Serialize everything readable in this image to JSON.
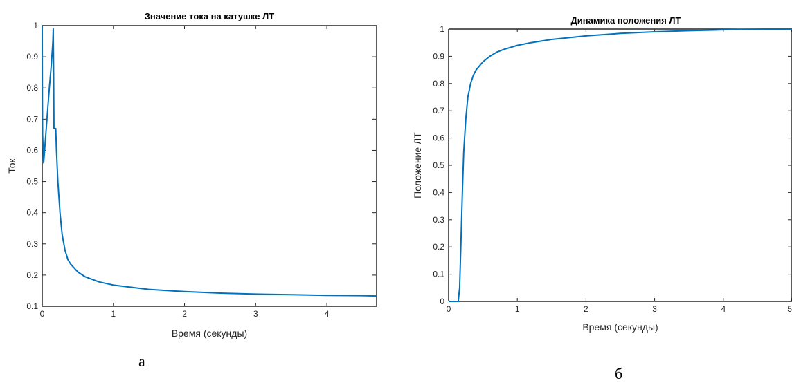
{
  "chart_data": [
    {
      "type": "line",
      "title": "Значение тока на катушке ЛТ",
      "xlabel": "Время (секунды)",
      "ylabel": "Ток",
      "xlim": [
        0,
        4.7
      ],
      "ylim": [
        0.1,
        1.0
      ],
      "xticks": [
        "0",
        "1",
        "2",
        "3",
        "4"
      ],
      "yticks": [
        "0.1",
        "0.2",
        "0.3",
        "0.4",
        "0.5",
        "0.6",
        "0.7",
        "0.8",
        "0.9",
        "1"
      ],
      "grid": false,
      "series": [
        {
          "color": "#0072BD",
          "x": [
            0,
            0.002,
            0.005,
            0.02,
            0.04,
            0.07,
            0.1,
            0.13,
            0.15,
            0.155,
            0.16,
            0.165,
            0.17,
            0.19,
            0.2,
            0.22,
            0.25,
            0.28,
            0.32,
            0.36,
            0.4,
            0.5,
            0.6,
            0.8,
            1.0,
            1.5,
            2.0,
            2.5,
            3.0,
            3.5,
            4.0,
            4.5,
            4.7
          ],
          "y": [
            1.0,
            0.8,
            0.65,
            0.56,
            0.62,
            0.71,
            0.8,
            0.88,
            0.95,
            0.99,
            0.85,
            0.67,
            0.67,
            0.67,
            0.6,
            0.5,
            0.4,
            0.33,
            0.28,
            0.25,
            0.235,
            0.21,
            0.195,
            0.178,
            0.168,
            0.154,
            0.147,
            0.142,
            0.139,
            0.137,
            0.135,
            0.134,
            0.133
          ]
        }
      ],
      "caption": "а"
    },
    {
      "type": "line",
      "title": "Динамика положения ЛТ",
      "xlabel": "Время (секунды)",
      "ylabel": "Положение ЛТ",
      "xlim": [
        0,
        5
      ],
      "ylim": [
        0,
        1
      ],
      "xticks": [
        "0",
        "1",
        "2",
        "3",
        "4",
        "5"
      ],
      "yticks": [
        "0",
        "0.1",
        "0.2",
        "0.3",
        "0.4",
        "0.5",
        "0.6",
        "0.7",
        "0.8",
        "0.9",
        "1"
      ],
      "grid": false,
      "series": [
        {
          "color": "#0072BD",
          "x": [
            0,
            0.14,
            0.16,
            0.18,
            0.2,
            0.22,
            0.25,
            0.28,
            0.32,
            0.36,
            0.4,
            0.45,
            0.5,
            0.6,
            0.7,
            0.8,
            1.0,
            1.2,
            1.5,
            2.0,
            2.5,
            3.0,
            3.5,
            4.0,
            4.3,
            4.6,
            5.0
          ],
          "y": [
            0,
            0,
            0.05,
            0.22,
            0.4,
            0.55,
            0.67,
            0.75,
            0.8,
            0.83,
            0.85,
            0.865,
            0.88,
            0.9,
            0.915,
            0.925,
            0.94,
            0.95,
            0.962,
            0.975,
            0.984,
            0.99,
            0.994,
            0.997,
            0.999,
            1.0,
            1.0
          ]
        }
      ],
      "caption": "б"
    }
  ]
}
